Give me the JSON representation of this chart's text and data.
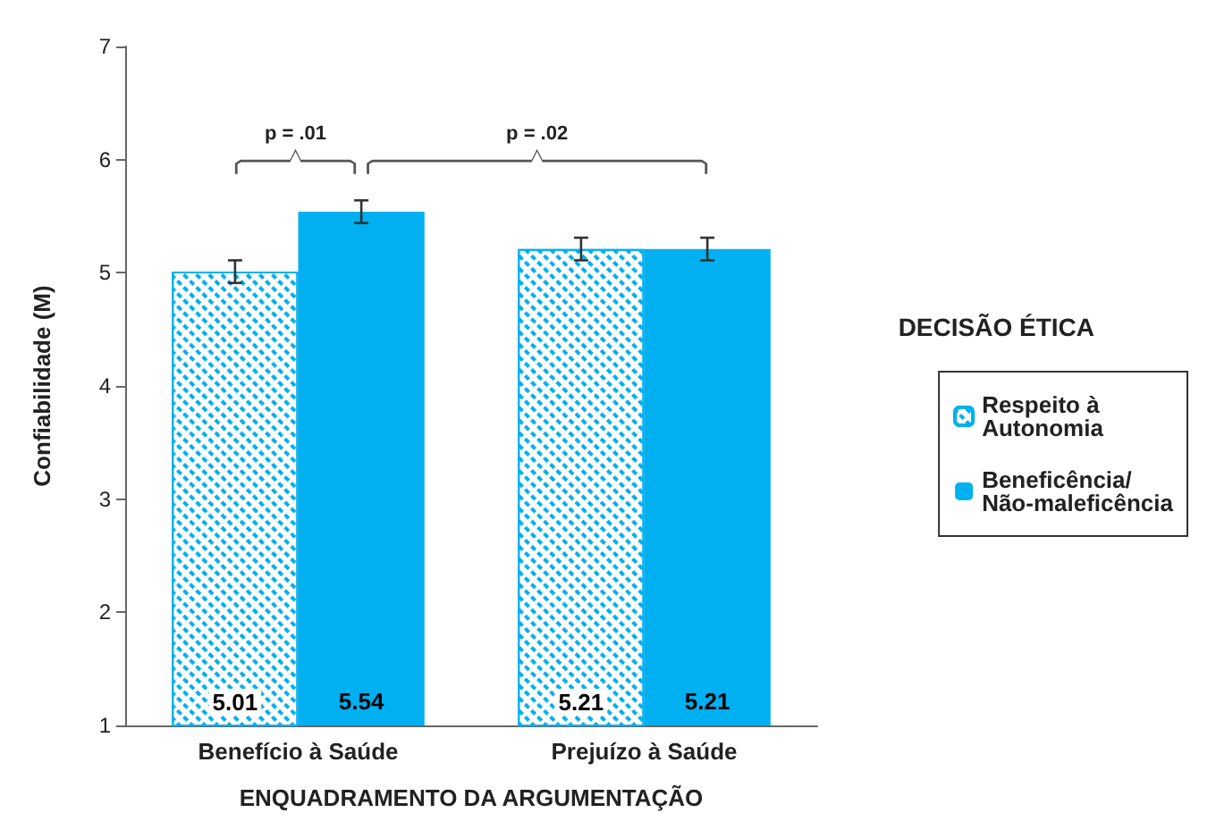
{
  "chart_data": {
    "type": "bar",
    "ylabel": "Confiabilidade (M)",
    "xlabel": "ENQUADRAMENTO DA ARGUMENTAÇÃO",
    "legend_title": "DECISÃO ÉTICA",
    "categories": [
      "Benefício à Saúde",
      "Prejuízo à Saúde"
    ],
    "series": [
      {
        "name": "Respeito à Autonomia",
        "color": "#00b0f0",
        "values": [
          5.01,
          5.21
        ],
        "errors": [
          0.1,
          0.1
        ]
      },
      {
        "name": "Beneficência/Não-maleficência",
        "color": "#00b0f0",
        "values": [
          5.54,
          5.21
        ],
        "errors": [
          0.1,
          0.1
        ]
      }
    ],
    "ylim": [
      1,
      7
    ],
    "yticks": [
      1,
      2,
      3,
      4,
      5,
      6,
      7
    ],
    "grid": false,
    "legend": "right",
    "data_labels": true,
    "annotations": [
      "p = .01",
      "p = .02"
    ]
  }
}
